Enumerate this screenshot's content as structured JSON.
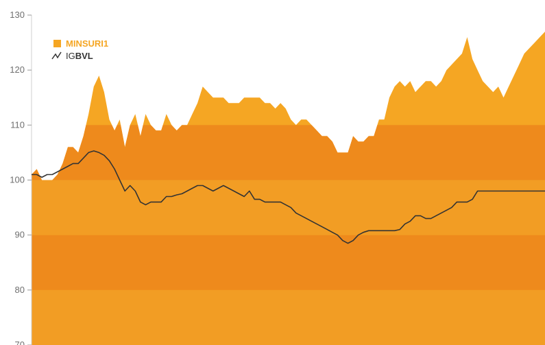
{
  "chart_data": {
    "type": "area",
    "title": "",
    "xlabel": "",
    "ylabel": "",
    "ylim": [
      70,
      130
    ],
    "yticks": [
      70,
      80,
      90,
      100,
      110,
      120,
      130
    ],
    "grid": false,
    "legend_position": "top-left",
    "colors": {
      "area": "#f5a623",
      "line": "#333333",
      "band_dark": "#ee8a1c",
      "band_light": "#f29d24"
    },
    "legend": [
      {
        "name": "MINSURI1",
        "icon": "square-swatch-icon"
      },
      {
        "prefix": "IG",
        "bold": "BVL",
        "icon": "line-chart-icon"
      }
    ],
    "x": [
      0,
      1,
      2,
      3,
      4,
      5,
      6,
      7,
      8,
      9,
      10,
      11,
      12,
      13,
      14,
      15,
      16,
      17,
      18,
      19,
      20,
      21,
      22,
      23,
      24,
      25,
      26,
      27,
      28,
      29,
      30,
      31,
      32,
      33,
      34,
      35,
      36,
      37,
      38,
      39,
      40,
      41,
      42,
      43,
      44,
      45,
      46,
      47,
      48,
      49,
      50,
      51,
      52,
      53,
      54,
      55,
      56,
      57,
      58,
      59,
      60,
      61,
      62,
      63,
      64,
      65,
      66,
      67,
      68,
      69,
      70,
      71,
      72,
      73,
      74,
      75,
      76,
      77,
      78,
      79,
      80,
      81,
      82,
      83,
      84,
      85,
      86,
      87,
      88,
      89,
      90,
      91,
      92,
      93,
      94,
      95,
      96,
      97,
      98,
      99
    ],
    "series": [
      {
        "name": "MINSURI1",
        "kind": "area",
        "values": [
          101,
          102,
          100,
          100,
          100,
          101,
          103,
          106,
          106,
          105,
          108,
          112,
          117,
          119,
          116,
          111,
          109,
          111,
          106,
          110,
          112,
          108,
          112,
          110,
          109,
          109,
          112,
          110,
          109,
          110,
          110,
          112,
          114,
          117,
          116,
          115,
          115,
          115,
          114,
          114,
          114,
          115,
          115,
          115,
          115,
          114,
          114,
          113,
          114,
          113,
          111,
          110,
          111,
          111,
          110,
          109,
          108,
          108,
          107,
          105,
          105,
          105,
          108,
          107,
          107,
          108,
          108,
          111,
          111,
          115,
          117,
          118,
          117,
          118,
          116,
          117,
          118,
          118,
          117,
          118,
          120,
          121,
          122,
          123,
          126,
          122,
          120,
          118,
          117,
          116,
          117,
          115,
          117,
          119,
          121,
          123,
          124,
          125,
          126,
          127
        ]
      },
      {
        "name": "IGBVL",
        "kind": "line",
        "values": [
          101,
          101,
          100.5,
          101,
          101,
          101.5,
          102,
          102.5,
          103,
          103,
          104,
          105,
          105.3,
          105,
          104.5,
          103.5,
          102,
          100,
          98,
          99,
          98,
          96,
          95.5,
          96,
          96,
          96,
          97,
          97,
          97.3,
          97.5,
          98,
          98.5,
          99,
          99,
          98.5,
          98,
          98.5,
          99,
          98.5,
          98,
          97.5,
          97,
          98,
          96.5,
          96.5,
          96,
          96,
          96,
          96,
          95.5,
          95,
          94,
          93.5,
          93,
          92.5,
          92,
          91.5,
          91,
          90.5,
          90,
          89,
          88.5,
          89,
          90,
          90.5,
          90.8,
          90.8,
          90.8,
          90.8,
          90.8,
          90.8,
          91,
          92,
          92.5,
          93.5,
          93.5,
          93,
          93,
          93.5,
          94,
          94.5,
          95,
          96,
          96,
          96,
          96.5,
          98,
          98,
          98,
          98,
          98,
          98,
          98,
          98,
          98,
          98,
          98,
          98,
          98,
          98
        ]
      }
    ]
  }
}
